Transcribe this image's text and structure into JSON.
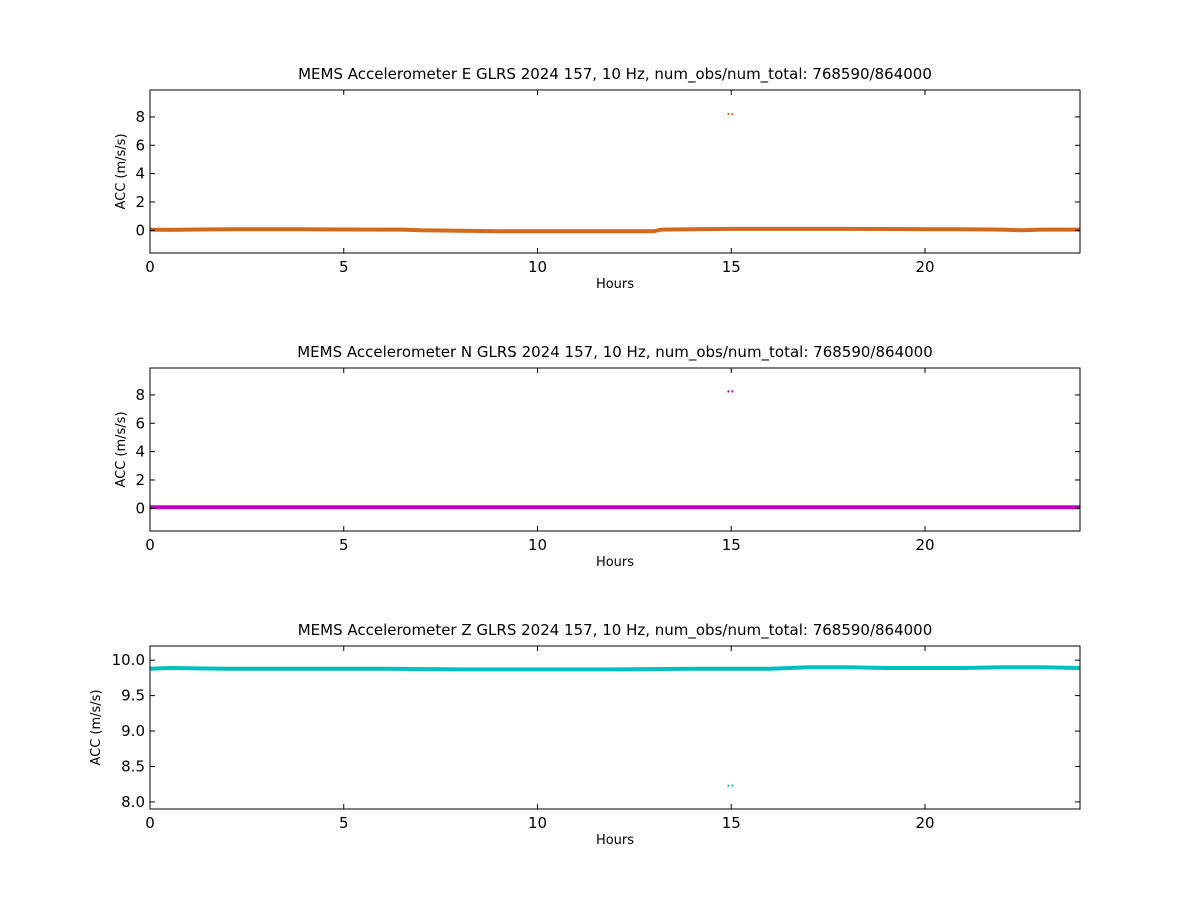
{
  "chart_data": [
    {
      "type": "scatter",
      "title": "MEMS Accelerometer E GLRS 2024 157, 10 Hz, num_obs/num_total: 768590/864000",
      "xlabel": "Hours",
      "ylabel": "ACC (m/s/s)",
      "xlim": [
        0,
        24
      ],
      "ylim": [
        -1.6,
        9.9
      ],
      "xticks": [
        0,
        5,
        10,
        15,
        20
      ],
      "yticks": [
        0,
        2,
        4,
        6,
        8
      ],
      "grid": false,
      "legend": "none",
      "color": "#d2691e",
      "series": [
        {
          "x": [
            0,
            0.5,
            1,
            2,
            3,
            4,
            5,
            6,
            6.5,
            7,
            8,
            9,
            10,
            11,
            12,
            13,
            13.2,
            14,
            15,
            16,
            17,
            18,
            19,
            20,
            21,
            22,
            22.5,
            23,
            24
          ],
          "y": [
            0.05,
            0.03,
            0.05,
            0.08,
            0.08,
            0.07,
            0.06,
            0.05,
            0.05,
            0.0,
            -0.03,
            -0.06,
            -0.07,
            -0.07,
            -0.07,
            -0.06,
            0.05,
            0.08,
            0.1,
            0.1,
            0.1,
            0.1,
            0.09,
            0.08,
            0.07,
            0.05,
            0.0,
            0.05,
            0.05
          ]
        },
        {
          "x": [
            14.93,
            15.03
          ],
          "y": [
            8.2,
            8.2
          ]
        }
      ]
    },
    {
      "type": "scatter",
      "title": "MEMS Accelerometer N GLRS 2024 157, 10 Hz, num_obs/num_total: 768590/864000",
      "xlabel": "Hours",
      "ylabel": "ACC (m/s/s)",
      "xlim": [
        0,
        24
      ],
      "ylim": [
        -1.6,
        9.9
      ],
      "xticks": [
        0,
        5,
        10,
        15,
        20
      ],
      "yticks": [
        0,
        2,
        4,
        6,
        8
      ],
      "grid": false,
      "legend": "none",
      "color": "#bf00bf",
      "series": [
        {
          "x": [
            0,
            2,
            4,
            6,
            8,
            10,
            12,
            14,
            16,
            18,
            20,
            22,
            24
          ],
          "y": [
            0.08,
            0.08,
            0.08,
            0.08,
            0.08,
            0.08,
            0.08,
            0.08,
            0.08,
            0.08,
            0.08,
            0.08,
            0.08
          ]
        },
        {
          "x": [
            14.93,
            15.03
          ],
          "y": [
            8.25,
            8.25
          ]
        }
      ]
    },
    {
      "type": "scatter",
      "title": "MEMS Accelerometer Z GLRS 2024 157, 10 Hz, num_obs/num_total: 768590/864000",
      "xlabel": "Hours",
      "ylabel": "ACC (m/s/s)",
      "xlim": [
        0,
        24
      ],
      "ylim": [
        7.9,
        10.2
      ],
      "xticks": [
        0,
        5,
        10,
        15,
        20
      ],
      "yticks": [
        8.0,
        8.5,
        9.0,
        9.5,
        10.0
      ],
      "grid": false,
      "legend": "none",
      "color": "#00bfbf",
      "series": [
        {
          "x": [
            0,
            0.5,
            2,
            4,
            6,
            8,
            10,
            12,
            14,
            16,
            16.5,
            17,
            18,
            19,
            20,
            21,
            22,
            23,
            24
          ],
          "y": [
            9.88,
            9.89,
            9.88,
            9.88,
            9.88,
            9.87,
            9.87,
            9.87,
            9.88,
            9.88,
            9.89,
            9.9,
            9.9,
            9.89,
            9.89,
            9.89,
            9.9,
            9.9,
            9.89
          ]
        },
        {
          "x": [
            14.93,
            15.03
          ],
          "y": [
            8.23,
            8.23
          ]
        }
      ]
    }
  ]
}
